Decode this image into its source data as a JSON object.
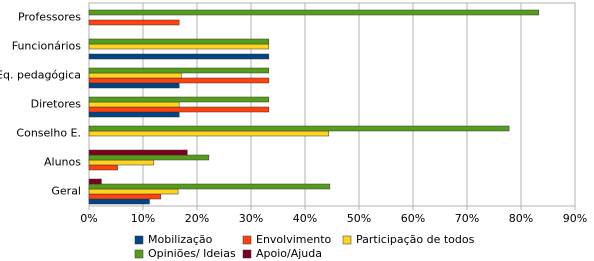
{
  "chart_data": {
    "type": "bar",
    "orientation": "horizontal",
    "categories": [
      "Professores",
      "Funcionários",
      "Eq. pedagógica",
      "Diretores",
      "Conselho E.",
      "Alunos",
      "Geral"
    ],
    "series": [
      {
        "name": "Mobilização",
        "color": "#004586",
        "values": [
          null,
          33.3,
          16.7,
          16.7,
          null,
          null,
          11.2
        ]
      },
      {
        "name": "Envolvimento",
        "color": "#ff420e",
        "values": [
          16.7,
          null,
          33.3,
          33.3,
          null,
          5.3,
          13.3
        ]
      },
      {
        "name": "Participação de todos",
        "color": "#ffd320",
        "values": [
          null,
          33.3,
          17.1,
          16.7,
          44.4,
          12.0,
          16.5
        ]
      },
      {
        "name": "Opiniões/ Ideias",
        "color": "#579d1c",
        "values": [
          83.3,
          33.3,
          33.3,
          33.3,
          77.8,
          22.2,
          44.6
        ]
      },
      {
        "name": "Apoio/Ajuda",
        "color": "#7e0021",
        "values": [
          null,
          null,
          null,
          null,
          null,
          18.2,
          2.3
        ]
      }
    ],
    "xlim": [
      0,
      90
    ],
    "xticks": [
      {
        "value": 0,
        "label": "0%"
      },
      {
        "value": 10,
        "label": "10%"
      },
      {
        "value": 20,
        "label": "20%"
      },
      {
        "value": 30,
        "label": "30%"
      },
      {
        "value": 40,
        "label": "40%"
      },
      {
        "value": 50,
        "label": "50%"
      },
      {
        "value": 60,
        "label": "60%"
      },
      {
        "value": 70,
        "label": "70%"
      },
      {
        "value": 80,
        "label": "80%"
      },
      {
        "value": 90,
        "label": "90%"
      }
    ],
    "grid": true,
    "legend": "bottom"
  }
}
